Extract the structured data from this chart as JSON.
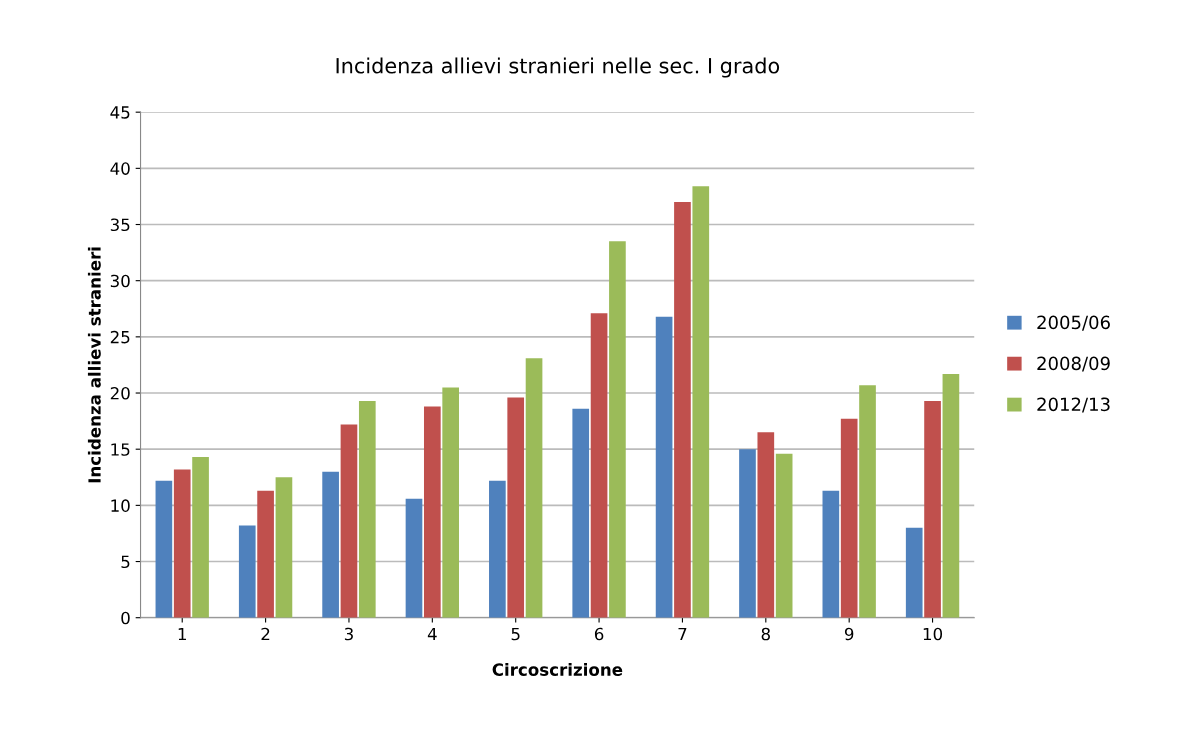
{
  "chart_data": {
    "type": "bar",
    "title": "Incidenza allievi stranieri nelle sec. I grado",
    "xlabel": "Circoscrizione",
    "ylabel": "Incidenza allievi stranieri",
    "categories": [
      "1",
      "2",
      "3",
      "4",
      "5",
      "6",
      "7",
      "8",
      "9",
      "10"
    ],
    "series": [
      {
        "name": "2005/06",
        "color": "#4f81bd",
        "values": [
          12.2,
          8.2,
          13.0,
          10.6,
          12.2,
          18.6,
          26.8,
          15.0,
          11.3,
          8.0
        ]
      },
      {
        "name": "2008/09",
        "color": "#c0504d",
        "values": [
          13.2,
          11.3,
          17.2,
          18.8,
          19.6,
          27.1,
          37.0,
          16.5,
          17.7,
          19.3
        ]
      },
      {
        "name": "2012/13",
        "color": "#9bbb59",
        "values": [
          14.3,
          12.5,
          19.3,
          20.5,
          23.1,
          33.5,
          38.4,
          14.6,
          20.7,
          21.7
        ]
      }
    ],
    "ylim": [
      0,
      45
    ],
    "yticks": [
      0,
      5,
      10,
      15,
      20,
      25,
      30,
      35,
      40,
      45
    ],
    "grid": "y",
    "legend": "right"
  }
}
